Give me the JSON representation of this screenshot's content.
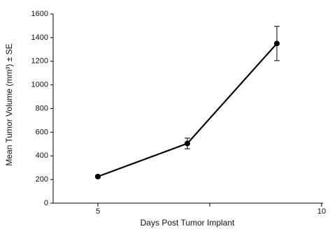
{
  "chart_data": {
    "type": "line",
    "x_label": "Days Post Tumor Implant",
    "y_label": "Mean Tumor Volume (mm³) ± SE",
    "x": [
      5,
      7,
      9
    ],
    "series": [
      {
        "color": "#000000",
        "values": [
          225,
          505,
          1350
        ],
        "errors": [
          10,
          45,
          145
        ]
      }
    ],
    "xlim": [
      4,
      10
    ],
    "xticks": [
      5,
      10
    ],
    "xminorticks": [
      7.5
    ],
    "ylim": [
      0,
      1600
    ],
    "yticks": [
      0,
      200,
      400,
      600,
      800,
      1000,
      1200,
      1400,
      1600
    ],
    "grid": false
  }
}
